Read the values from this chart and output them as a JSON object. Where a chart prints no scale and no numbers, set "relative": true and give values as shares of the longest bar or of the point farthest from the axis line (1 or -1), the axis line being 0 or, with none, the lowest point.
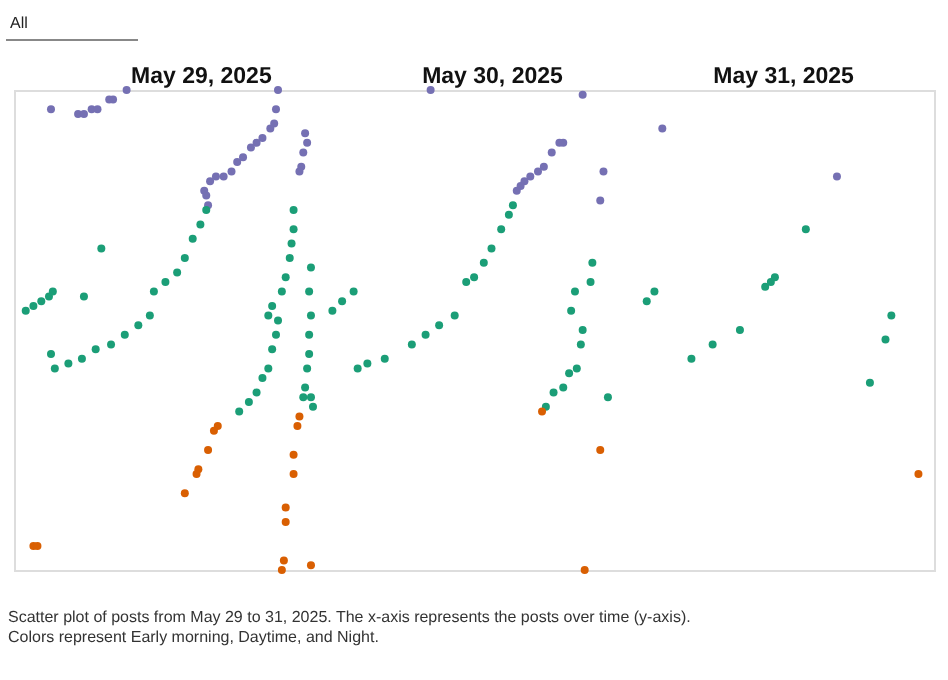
{
  "chart_data": {
    "type": "scatter",
    "relative": true,
    "marker": "circle",
    "grid": false,
    "legend": false,
    "tick_labels": "x",
    "xlim": [
      "2025-05-28T20:38",
      "2025-06-01T00:29"
    ],
    "xticks": [
      {
        "value": "2025-05-29T12:00",
        "label": "May 29, 2025"
      },
      {
        "value": "2025-05-30T12:00",
        "label": "May 30, 2025"
      },
      {
        "value": "2025-05-31T12:00",
        "label": "May 31, 2025"
      }
    ],
    "annotations": [
      "All",
      "Scatter plot of posts from May 29 to 31, 2025. The x-axis represents the posts over time (y-axis). Colors represent Early morning, Daytime, and Night."
    ],
    "series": [
      {
        "color": "#7570b3",
        "x": [
          "2025-05-28T23:41",
          "2025-05-29T01:55",
          "2025-05-29T02:24",
          "2025-05-29T03:02",
          "2025-05-29T03:31",
          "2025-05-29T04:29",
          "2025-05-29T04:48",
          "2025-05-29T05:55",
          "2025-05-29T18:24",
          "2025-05-29T18:14",
          "2025-05-29T18:05",
          "2025-05-29T17:46",
          "2025-05-29T17:07",
          "2025-05-29T16:38",
          "2025-05-29T16:10",
          "2025-05-29T15:31",
          "2025-05-29T15:02",
          "2025-05-29T14:34",
          "2025-05-29T13:55",
          "2025-05-29T13:17",
          "2025-05-29T12:48",
          "2025-05-29T12:19",
          "2025-05-29T12:29",
          "2025-05-29T12:38",
          "2025-05-29T20:38",
          "2025-05-29T20:48",
          "2025-05-29T20:29",
          "2025-05-29T20:19",
          "2025-05-29T20:10",
          "2025-05-30T06:59",
          "2025-05-30T19:31",
          "2025-05-30T21:14",
          "2025-05-30T20:58",
          "2025-05-30T17:55",
          "2025-05-30T17:36",
          "2025-05-30T16:58",
          "2025-05-30T16:19",
          "2025-05-30T15:50",
          "2025-05-30T15:12",
          "2025-05-30T14:43",
          "2025-05-30T14:24",
          "2025-05-30T14:05",
          "2025-05-31T02:05",
          "2025-05-31T16:29"
        ],
        "values": [
          0.96,
          0.95,
          0.95,
          0.96,
          0.96,
          0.98,
          0.98,
          1.0,
          1.0,
          0.96,
          0.93,
          0.92,
          0.9,
          0.89,
          0.88,
          0.86,
          0.85,
          0.83,
          0.82,
          0.82,
          0.81,
          0.79,
          0.78,
          0.76,
          0.91,
          0.89,
          0.87,
          0.84,
          0.83,
          1.0,
          0.99,
          0.83,
          0.77,
          0.89,
          0.89,
          0.87,
          0.84,
          0.83,
          0.82,
          0.81,
          0.8,
          0.79,
          0.92,
          0.82
        ]
      },
      {
        "color": "#1b9e77",
        "x": [
          "2025-05-28T21:36",
          "2025-05-28T22:14",
          "2025-05-28T22:53",
          "2025-05-28T23:31",
          "2025-05-28T23:50",
          "2025-05-29T03:50",
          "2025-05-29T02:24",
          "2025-05-28T23:41",
          "2025-05-29T00:00",
          "2025-05-29T01:07",
          "2025-05-29T02:14",
          "2025-05-29T03:22",
          "2025-05-29T04:38",
          "2025-05-29T05:46",
          "2025-05-29T06:53",
          "2025-05-29T07:50",
          "2025-05-29T08:10",
          "2025-05-29T09:07",
          "2025-05-29T10:05",
          "2025-05-29T10:43",
          "2025-05-29T11:22",
          "2025-05-29T12:00",
          "2025-05-29T12:29",
          "2025-05-29T19:41",
          "2025-05-29T19:41",
          "2025-05-29T19:31",
          "2025-05-29T19:22",
          "2025-05-29T19:02",
          "2025-05-29T18:43",
          "2025-05-29T17:55",
          "2025-05-29T17:36",
          "2025-05-29T18:24",
          "2025-05-29T18:14",
          "2025-05-29T17:55",
          "2025-05-29T17:36",
          "2025-05-29T17:07",
          "2025-05-29T16:38",
          "2025-05-29T16:00",
          "2025-05-29T15:12",
          "2025-05-29T21:07",
          "2025-05-29T20:58",
          "2025-05-29T21:07",
          "2025-05-29T20:58",
          "2025-05-29T20:58",
          "2025-05-29T20:48",
          "2025-05-29T20:38",
          "2025-05-29T20:29",
          "2025-05-29T21:07",
          "2025-05-29T21:17",
          "2025-05-29T22:53",
          "2025-05-29T23:41",
          "2025-05-30T00:38",
          "2025-05-30T00:58",
          "2025-05-30T01:46",
          "2025-05-30T03:12",
          "2025-05-30T05:26",
          "2025-05-30T06:34",
          "2025-05-30T07:41",
          "2025-05-30T08:58",
          "2025-05-30T09:55",
          "2025-05-30T10:34",
          "2025-05-30T11:22",
          "2025-05-30T12:00",
          "2025-05-30T12:48",
          "2025-05-30T13:26",
          "2025-05-30T13:46",
          "2025-05-30T20:19",
          "2025-05-30T20:10",
          "2025-05-30T18:53",
          "2025-05-30T18:34",
          "2025-05-30T19:31",
          "2025-05-30T19:22",
          "2025-05-30T19:02",
          "2025-05-30T18:24",
          "2025-05-30T17:55",
          "2025-05-30T17:07",
          "2025-05-30T16:29",
          "2025-05-30T21:36",
          "2025-05-31T00:48",
          "2025-05-31T01:26",
          "2025-05-31T04:29",
          "2025-05-31T06:14",
          "2025-05-31T08:29",
          "2025-05-31T10:34",
          "2025-05-31T11:02",
          "2025-05-31T11:22",
          "2025-05-31T13:55",
          "2025-05-31T19:12",
          "2025-05-31T20:29",
          "2025-05-31T20:58"
        ],
        "values": [
          0.54,
          0.55,
          0.56,
          0.57,
          0.58,
          0.67,
          0.57,
          0.45,
          0.42,
          0.43,
          0.44,
          0.46,
          0.47,
          0.49,
          0.51,
          0.53,
          0.58,
          0.6,
          0.62,
          0.65,
          0.69,
          0.72,
          0.75,
          0.75,
          0.71,
          0.68,
          0.65,
          0.61,
          0.58,
          0.55,
          0.53,
          0.52,
          0.49,
          0.46,
          0.42,
          0.4,
          0.37,
          0.35,
          0.33,
          0.63,
          0.58,
          0.53,
          0.49,
          0.45,
          0.42,
          0.38,
          0.36,
          0.36,
          0.34,
          0.54,
          0.56,
          0.58,
          0.42,
          0.43,
          0.44,
          0.47,
          0.49,
          0.51,
          0.53,
          0.6,
          0.61,
          0.64,
          0.67,
          0.71,
          0.74,
          0.76,
          0.64,
          0.6,
          0.58,
          0.54,
          0.5,
          0.47,
          0.42,
          0.41,
          0.38,
          0.37,
          0.34,
          0.36,
          0.56,
          0.58,
          0.44,
          0.47,
          0.5,
          0.59,
          0.6,
          0.61,
          0.71,
          0.39,
          0.48,
          0.53
        ]
      },
      {
        "color": "#d95f02",
        "x": [
          "2025-05-29T13:26",
          "2025-05-29T13:07",
          "2025-05-29T12:38",
          "2025-05-29T11:50",
          "2025-05-29T11:41",
          "2025-05-29T10:43",
          "2025-05-28T22:14",
          "2025-05-28T22:34",
          "2025-05-29T20:10",
          "2025-05-29T20:00",
          "2025-05-29T19:41",
          "2025-05-29T19:41",
          "2025-05-29T19:02",
          "2025-05-29T19:02",
          "2025-05-29T18:53",
          "2025-05-29T18:43",
          "2025-05-29T21:07",
          "2025-05-30T16:10",
          "2025-05-30T20:58",
          "2025-05-30T19:41",
          "2025-05-31T23:12"
        ],
        "values": [
          0.3,
          0.29,
          0.25,
          0.21,
          0.2,
          0.16,
          0.05,
          0.05,
          0.32,
          0.3,
          0.24,
          0.2,
          0.13,
          0.1,
          0.02,
          0.0,
          0.01,
          0.33,
          0.25,
          0.0,
          0.2
        ]
      }
    ]
  }
}
